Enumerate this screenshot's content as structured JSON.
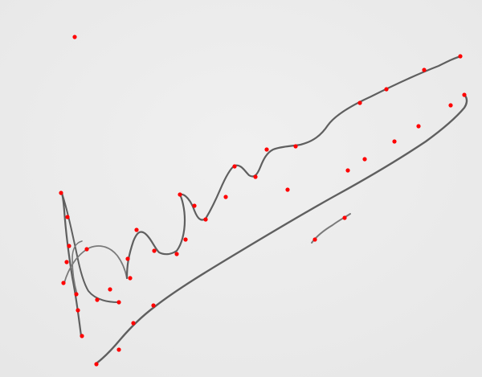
{
  "image": {
    "ink_color": "#6e6e6e",
    "marker_color": "#ff0000",
    "paper_color": "#ececec"
  }
}
